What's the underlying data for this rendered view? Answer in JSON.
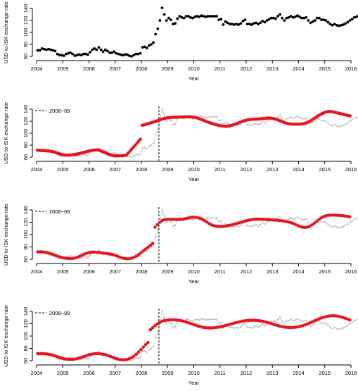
{
  "chart_data": [
    {
      "type": "scatter",
      "xlabel": "Year",
      "ylabel": "USD to ISK exchange rate",
      "xlim": [
        2004,
        2016
      ],
      "ylim": [
        60,
        140
      ],
      "x_ticks": [
        "2004",
        "2005",
        "2006",
        "2007",
        "2008",
        "2009",
        "2010",
        "2011",
        "2012",
        "2013",
        "2014",
        "2015",
        "2016"
      ],
      "y_ticks": [
        "60",
        "80",
        "100",
        "120",
        "140"
      ],
      "points_per_year": 12,
      "series": [
        {
          "values": [
            70,
            70,
            73,
            72,
            71,
            72,
            71,
            70,
            69,
            64,
            62,
            62,
            61,
            64,
            65,
            66,
            64,
            61,
            62,
            63,
            62,
            64,
            64,
            63,
            67,
            71,
            73,
            71,
            75,
            71,
            68,
            71,
            69,
            66,
            66,
            68,
            65,
            64,
            63,
            62,
            63,
            63,
            61,
            60,
            62,
            64,
            64,
            65,
            75,
            76,
            74,
            78,
            80,
            83,
            97,
            106,
            120,
            141,
            130,
            120,
            124,
            121,
            114,
            115,
            123,
            127,
            125,
            124,
            127,
            127,
            125,
            124,
            126,
            127,
            126,
            128,
            127,
            126,
            127,
            127,
            127,
            127,
            127,
            121,
            122,
            113,
            118,
            116,
            114,
            114,
            113,
            114,
            113,
            115,
            119,
            121,
            114,
            114,
            113,
            115,
            116,
            114,
            116,
            119,
            117,
            120,
            122,
            124,
            124,
            123,
            127,
            130,
            124,
            120,
            124,
            125,
            127,
            125,
            126,
            128,
            126,
            124,
            124,
            125,
            120,
            116,
            118,
            120,
            124,
            124,
            121,
            121,
            120,
            117,
            114,
            112,
            114,
            112,
            111,
            112,
            113,
            115,
            117,
            120,
            122,
            125,
            126,
            128,
            134,
            134,
            137,
            131,
            133,
            132,
            134,
            130,
            129,
            131,
            132,
            128
          ]
        }
      ]
    },
    {
      "type": "scatter",
      "xlabel": "Year",
      "ylabel": "USD to ISK exchange rate",
      "xlim": [
        2004,
        2016
      ],
      "ylim": [
        60,
        140
      ],
      "x_ticks": [
        "2004",
        "2005",
        "2006",
        "2007",
        "2008",
        "2009",
        "2010",
        "2011",
        "2012",
        "2013",
        "2014",
        "2015",
        "2016"
      ],
      "y_ticks": [
        "60",
        "80",
        "100",
        "120",
        "140"
      ],
      "breakpoint": {
        "x": 2008.67,
        "label": "2008−09"
      },
      "fitted": [
        71.5,
        71.3,
        71.1,
        70.9,
        70.7,
        70.5,
        70.3,
        70,
        69.6,
        69,
        68.2,
        67.2,
        66.2,
        65.3,
        64.4,
        63.8,
        63.4,
        63.2,
        63.2,
        63.4,
        63.8,
        64.3,
        64.8,
        65.4,
        66,
        66.7,
        67.4,
        68.2,
        69,
        69.8,
        70.5,
        71.1,
        71.6,
        71.9,
        71.9,
        71.5,
        70.7,
        69.6,
        68.3,
        67,
        65.7,
        64.4,
        63.4,
        62.7,
        62.3,
        62.1,
        62.1,
        62.2,
        62.2,
        62.4,
        62.8,
        63.6,
        66.8,
        70.1,
        73.4,
        76.7,
        80,
        83.3,
        86.6,
        89.9,
        113.2,
        113.9,
        114.7,
        115.5,
        116.4,
        117.3,
        118.2,
        119.1,
        120.1,
        121.1,
        122.1,
        123.1,
        124,
        124.8,
        125.4,
        125.9,
        126.2,
        126.4,
        126.5,
        126.6,
        126.7,
        126.8,
        126.9,
        127,
        127.1,
        127.2,
        127.3,
        127.3,
        127.2,
        126.9,
        126.4,
        125.7,
        124.8,
        123.8,
        122.7,
        121.5,
        120.3,
        119.1,
        118,
        117,
        116.1,
        115.2,
        114.4,
        113.6,
        112.9,
        112.3,
        111.9,
        111.6,
        111.5,
        111.7,
        112.1,
        112.8,
        113.7,
        114.7,
        115.8,
        117,
        118.2,
        119.3,
        120.3,
        121.2,
        121.9,
        122.5,
        122.9,
        123.1,
        123.3,
        123.4,
        123.5,
        123.7,
        124,
        124.3,
        124.7,
        125,
        125.2,
        125.2,
        124.9,
        124.4,
        123.7,
        122.8,
        121.7,
        120.5,
        119.3,
        118.1,
        117.1,
        116.3,
        115.7,
        115.3,
        115.1,
        115,
        115,
        115,
        115.1,
        115.3,
        115.7,
        116.3,
        117.2,
        118.5,
        120,
        121.8,
        123.7,
        125.7,
        127.6,
        129.5,
        131.2,
        132.7,
        134,
        135.1,
        135.8,
        136.1,
        136,
        135.6,
        135,
        134.3,
        133.6,
        132.9,
        132.2,
        131.5,
        130.8,
        130.1,
        129.4,
        128.7
      ],
      "series": [
        {
          "values": [
            70,
            70,
            73,
            72,
            71,
            72,
            71,
            70,
            69,
            64,
            62,
            62,
            61,
            64,
            65,
            66,
            64,
            61,
            62,
            63,
            62,
            64,
            64,
            63,
            67,
            71,
            73,
            71,
            75,
            71,
            68,
            71,
            69,
            66,
            66,
            68,
            65,
            64,
            63,
            62,
            63,
            63,
            61,
            60,
            62,
            64,
            64,
            65,
            75,
            76,
            74,
            78,
            80,
            83,
            97,
            106,
            120,
            141,
            130,
            120,
            124,
            121,
            114,
            115,
            123,
            127,
            125,
            124,
            127,
            127,
            125,
            124,
            126,
            127,
            126,
            128,
            127,
            126,
            127,
            127,
            127,
            127,
            127,
            121,
            122,
            113,
            118,
            116,
            114,
            114,
            113,
            114,
            113,
            115,
            119,
            121,
            114,
            114,
            113,
            115,
            116,
            114,
            116,
            119,
            117,
            120,
            122,
            124,
            124,
            123,
            127,
            130,
            124,
            120,
            124,
            125,
            127,
            125,
            126,
            128,
            126,
            124,
            124,
            125,
            120,
            116,
            118,
            120,
            124,
            124,
            121,
            121,
            120,
            117,
            114,
            112,
            114,
            112,
            111,
            112,
            113,
            115,
            117,
            120,
            122,
            125,
            126,
            128,
            134,
            134,
            137,
            131,
            133,
            132,
            134,
            130,
            129,
            131,
            132,
            128
          ]
        }
      ]
    },
    {
      "type": "scatter",
      "xlabel": "Year",
      "ylabel": "USD to ISK exchange rate",
      "xlim": [
        2004,
        2016
      ],
      "ylim": [
        60,
        140
      ],
      "x_ticks": [
        "2004",
        "2005",
        "2006",
        "2007",
        "2008",
        "2009",
        "2010",
        "2011",
        "2012",
        "2013",
        "2014",
        "2015",
        "2016"
      ],
      "y_ticks": [
        "60",
        "80",
        "100",
        "120",
        "140"
      ],
      "breakpoint": {
        "x": 2008.67,
        "label": "2008−09"
      },
      "fitted": [
        72,
        72.1,
        71.9,
        71.4,
        70.6,
        69.5,
        68.2,
        66.8,
        65.5,
        64.2,
        63.1,
        62.2,
        61.6,
        61.2,
        61.1,
        61.4,
        62.2,
        63.5,
        65.1,
        66.9,
        68.6,
        70,
        71,
        71.5,
        71.6,
        71.3,
        70.9,
        70.4,
        69.9,
        69.4,
        68.9,
        68.3,
        67.5,
        66.3,
        64.9,
        63.4,
        62,
        61.1,
        60.7,
        60.9,
        61.7,
        63.1,
        65.1,
        67.6,
        70.4,
        73.4,
        76.5,
        79.5,
        82.6,
        85.8,
        112.1,
        116.2,
        119.9,
        122.6,
        124.1,
        124.7,
        124.8,
        124.8,
        124.7,
        124.6,
        124.6,
        124.7,
        125.1,
        125.8,
        126.7,
        127.6,
        128.2,
        128.2,
        127.7,
        126.6,
        124.9,
        122.8,
        120.4,
        118,
        115.9,
        114.5,
        113.7,
        113.3,
        113.2,
        113.4,
        113.8,
        114.5,
        115.3,
        116.2,
        117.2,
        118.2,
        119.3,
        120.4,
        121.5,
        122.5,
        123.4,
        124.1,
        124.7,
        125,
        125.1,
        125,
        124.8,
        124.6,
        124.4,
        124.2,
        123.9,
        123.6,
        123.3,
        122.9,
        122.4,
        121.8,
        121.1,
        120.3,
        119.2,
        117.8,
        116.1,
        114.3,
        112.8,
        111.8,
        111.6,
        112.2,
        113.7,
        116,
        118.8,
        121.9,
        125,
        127.5,
        129.5,
        130.7,
        131.4,
        131.6,
        131.6,
        131.5,
        131.3,
        131,
        130.6,
        130.1,
        129.5,
        128.8
      ],
      "series": [
        {
          "values": [
            70,
            70,
            73,
            72,
            71,
            72,
            71,
            70,
            69,
            64,
            62,
            62,
            61,
            64,
            65,
            66,
            64,
            61,
            62,
            63,
            62,
            64,
            64,
            63,
            67,
            71,
            73,
            71,
            75,
            71,
            68,
            71,
            69,
            66,
            66,
            68,
            65,
            64,
            63,
            62,
            63,
            63,
            61,
            60,
            62,
            64,
            64,
            65,
            75,
            76,
            74,
            78,
            80,
            83,
            97,
            106,
            120,
            141,
            130,
            120,
            124,
            121,
            114,
            115,
            123,
            127,
            125,
            124,
            127,
            127,
            125,
            124,
            126,
            127,
            126,
            128,
            127,
            126,
            127,
            127,
            127,
            127,
            127,
            121,
            122,
            113,
            118,
            116,
            114,
            114,
            113,
            114,
            113,
            115,
            119,
            121,
            114,
            114,
            113,
            115,
            116,
            114,
            116,
            119,
            117,
            120,
            122,
            124,
            124,
            123,
            127,
            130,
            124,
            120,
            124,
            125,
            127,
            125,
            126,
            128,
            126,
            124,
            124,
            125,
            120,
            116,
            118,
            120,
            124,
            124,
            121,
            121,
            120,
            117,
            114,
            112,
            114,
            112,
            111,
            112,
            113,
            115,
            117,
            120,
            122,
            125,
            126,
            128,
            134,
            134,
            137,
            131,
            133,
            132,
            134,
            130,
            129,
            131,
            132,
            128
          ]
        }
      ]
    },
    {
      "type": "scatter",
      "xlabel": "Year",
      "ylabel": "USD to ISK exchange rate",
      "xlim": [
        2004,
        2016
      ],
      "ylim": [
        60,
        140
      ],
      "x_ticks": [
        "2004",
        "2005",
        "2006",
        "2007",
        "2008",
        "2009",
        "2010",
        "2011",
        "2012",
        "2013",
        "2014",
        "2015",
        "2016"
      ],
      "y_ticks": [
        "60",
        "80",
        "100",
        "120",
        "140"
      ],
      "breakpoint": {
        "x": 2008.67,
        "label": "2008−09"
      },
      "fitted": [
        71.5,
        71.5,
        71.4,
        71.2,
        70.8,
        70.2,
        69.3,
        68.2,
        67,
        65.6,
        64.4,
        63.4,
        62.6,
        62.2,
        62.1,
        62.3,
        62.8,
        63.6,
        64.7,
        66,
        67.3,
        68.6,
        69.8,
        70.7,
        71.3,
        71.5,
        71.4,
        71,
        70.4,
        69.5,
        68.3,
        66.9,
        65.3,
        63.8,
        62.6,
        61.8,
        61.4,
        61.5,
        62.1,
        63.2,
        65,
        67.5,
        70.6,
        74.2,
        78.1,
        82.1,
        86,
        89.5,
        110.1,
        113.5,
        116.8,
        119.7,
        122.1,
        123.9,
        125.1,
        125.8,
        126.2,
        126.3,
        126.3,
        126.1,
        125.7,
        125.1,
        124.2,
        123.1,
        121.9,
        120.6,
        119.3,
        118,
        116.7,
        115.6,
        114.6,
        113.9,
        113.4,
        113.2,
        113.2,
        113.4,
        113.8,
        114.4,
        115.1,
        116,
        117,
        118,
        119.1,
        120.2,
        121.3,
        122.3,
        123.2,
        124,
        124.7,
        125.2,
        125.5,
        125.6,
        125.6,
        125.4,
        125,
        124.5,
        123.8,
        122.9,
        121.9,
        120.8,
        119.6,
        118.4,
        117.3,
        116.2,
        115.3,
        114.6,
        114.1,
        113.9,
        113.8,
        114,
        114.4,
        115,
        115.9,
        117,
        118.3,
        119.8,
        121.4,
        123.1,
        124.8,
        126.5,
        128.1,
        129.5,
        130.7,
        131.7,
        132.4,
        132.8,
        132.9,
        132.7,
        132.1,
        131.3,
        130.2,
        129,
        127.6,
        126.2
      ],
      "series": [
        {
          "values": [
            70,
            70,
            73,
            72,
            71,
            72,
            71,
            70,
            69,
            64,
            62,
            62,
            61,
            64,
            65,
            66,
            64,
            61,
            62,
            63,
            62,
            64,
            64,
            63,
            67,
            71,
            73,
            71,
            75,
            71,
            68,
            71,
            69,
            66,
            66,
            68,
            65,
            64,
            63,
            62,
            63,
            63,
            61,
            60,
            62,
            64,
            64,
            65,
            75,
            76,
            74,
            78,
            80,
            83,
            97,
            106,
            120,
            141,
            130,
            120,
            124,
            121,
            114,
            115,
            123,
            127,
            125,
            124,
            127,
            127,
            125,
            124,
            126,
            127,
            126,
            128,
            127,
            126,
            127,
            127,
            127,
            127,
            127,
            121,
            122,
            113,
            118,
            116,
            114,
            114,
            113,
            114,
            113,
            115,
            119,
            121,
            114,
            114,
            113,
            115,
            116,
            114,
            116,
            119,
            117,
            120,
            122,
            124,
            124,
            123,
            127,
            130,
            124,
            120,
            124,
            125,
            127,
            125,
            126,
            128,
            126,
            124,
            124,
            125,
            120,
            116,
            118,
            120,
            124,
            124,
            121,
            121,
            120,
            117,
            114,
            112,
            114,
            112,
            111,
            112,
            113,
            115,
            117,
            120,
            122,
            125,
            126,
            128,
            134,
            134,
            137,
            131,
            133,
            132,
            134,
            130,
            129,
            131,
            132,
            128
          ]
        }
      ]
    }
  ]
}
